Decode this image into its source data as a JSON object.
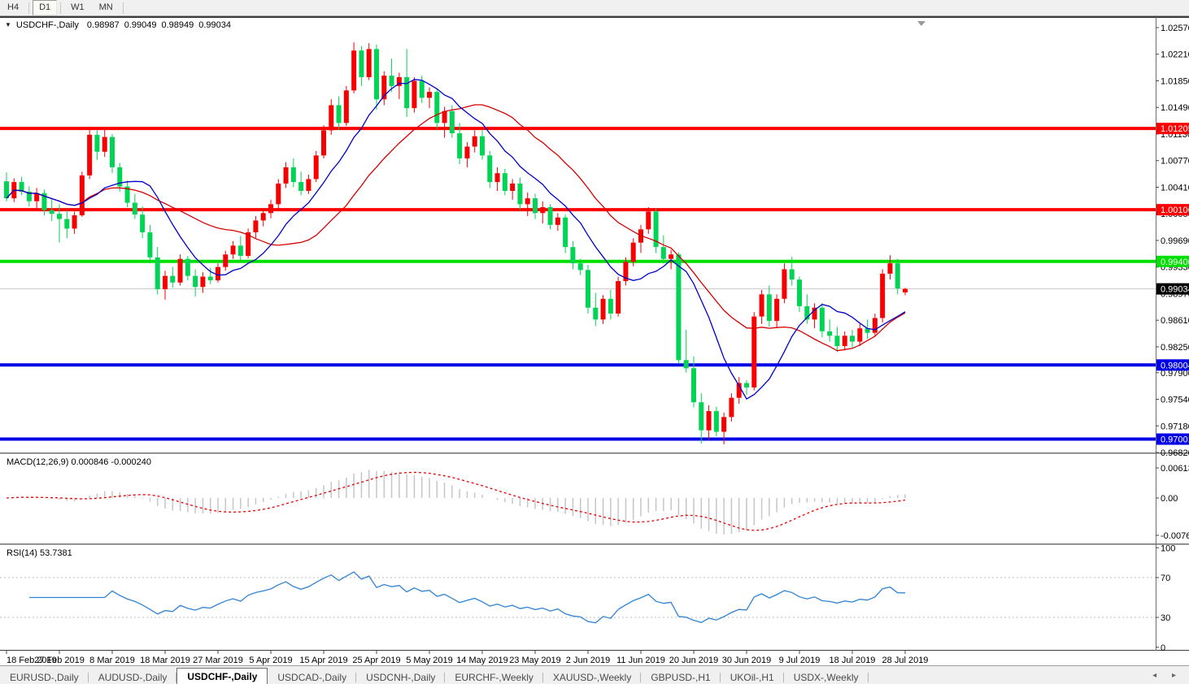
{
  "toolbar": {
    "buttons": [
      {
        "label": "H4",
        "active": false
      },
      {
        "label": "D1",
        "active": true
      },
      {
        "label": "W1",
        "active": false
      },
      {
        "label": "MN",
        "active": false
      }
    ]
  },
  "chart_window": {
    "dropdown_icon": "▼",
    "symbol_label": "USDCHF-,Daily",
    "open": "0.98987",
    "high": "0.99049",
    "low": "0.98949",
    "close": "0.99034",
    "shift_marker_icon": "chart-shift-triangle"
  },
  "indicator_labels": {
    "macd_name": "MACD(12,26,9)",
    "macd_values": "0.000846 -0.000240",
    "rsi_name": "RSI(14)",
    "rsi_value": "53.7381"
  },
  "colors": {
    "bull_candle": "#f60000",
    "bear_candle": "#00d455",
    "ma_fast": "#0000c8",
    "ma_slow": "#d40000",
    "level_red": "#ff0000",
    "level_green": "#00e000",
    "level_blue": "#0000e8",
    "current_line": "#c8c8c8",
    "current_badge": "#000000",
    "macd_hist": "#c6c6c6",
    "macd_signal": "#e60000",
    "rsi_line": "#2f83d4",
    "rsi_levels": "#bdbdbd",
    "axis_text": "#000000"
  },
  "y_axis_ticks": [
    "1.02570",
    "1.02210",
    "1.01850",
    "1.01490",
    "1.01130",
    "1.00770",
    "1.00410",
    "1.00050",
    "0.99690",
    "0.99330",
    "0.98970",
    "0.98610",
    "0.98250",
    "0.97900",
    "0.97540",
    "0.97180",
    "0.96820"
  ],
  "macd_axis_ticks": [
    {
      "label": "0.00613",
      "value": 0.00613
    },
    {
      "label": "0.00",
      "value": 0.0
    },
    {
      "label": "-0.007612",
      "value": -0.00761
    }
  ],
  "rsi_axis_ticks": [
    {
      "label": "100",
      "value": 100
    },
    {
      "label": "70",
      "value": 70
    },
    {
      "label": "30",
      "value": 30
    },
    {
      "label": "0",
      "value": 0
    }
  ],
  "chart_data": {
    "type": "candlestick",
    "symbol": "USDCHF",
    "timeframe": "Daily",
    "y_range": {
      "top": 1.0257,
      "bottom": 0.9682
    },
    "grid": "off",
    "levels": [
      {
        "label": "1.01205",
        "value": 1.01205,
        "color": "#ff0000"
      },
      {
        "label": "1.00106",
        "value": 1.00106,
        "color": "#ff0000"
      },
      {
        "label": "0.99406",
        "value": 0.99406,
        "color": "#00e000"
      },
      {
        "label": "0.98004",
        "value": 0.98004,
        "color": "#0000e8"
      },
      {
        "label": "0.97001",
        "value": 0.97001,
        "color": "#0000e8"
      }
    ],
    "current_price": {
      "label": "0.99034",
      "value": 0.99034
    },
    "x_ticks": [
      {
        "label": "18 Feb 2019",
        "index": 0
      },
      {
        "label": "27 Feb 2019",
        "index": 7
      },
      {
        "label": "8 Mar 2019",
        "index": 14
      },
      {
        "label": "18 Mar 2019",
        "index": 21
      },
      {
        "label": "27 Mar 2019",
        "index": 28
      },
      {
        "label": "5 Apr 2019",
        "index": 35
      },
      {
        "label": "15 Apr 2019",
        "index": 42
      },
      {
        "label": "25 Apr 2019",
        "index": 49
      },
      {
        "label": "5 May 2019",
        "index": 56
      },
      {
        "label": "14 May 2019",
        "index": 63
      },
      {
        "label": "23 May 2019",
        "index": 70
      },
      {
        "label": "2 Jun 2019",
        "index": 77
      },
      {
        "label": "11 Jun 2019",
        "index": 84
      },
      {
        "label": "20 Jun 2019",
        "index": 91
      },
      {
        "label": "30 Jun 2019",
        "index": 98
      },
      {
        "label": "9 Jul 2019",
        "index": 105
      },
      {
        "label": "18 Jul 2019",
        "index": 112
      },
      {
        "label": "28 Jul 2019",
        "index": 119
      }
    ],
    "indicators": {
      "ma_fast_period": 10,
      "ma_slow_period": 22,
      "macd": {
        "fast": 12,
        "slow": 26,
        "signal": 9,
        "main_value": 0.000846,
        "signal_value": -0.00024
      },
      "rsi": {
        "period": 14,
        "value": 53.7381,
        "overbought": 70,
        "oversold": 30
      }
    },
    "candles": [
      [
        1.0049,
        1.0061,
        1.0022,
        1.0026
      ],
      [
        1.0026,
        1.0053,
        1.0021,
        1.0048
      ],
      [
        1.0048,
        1.0055,
        1.003,
        1.0035
      ],
      [
        1.0035,
        1.0042,
        1.0015,
        1.0022
      ],
      [
        1.0022,
        1.004,
        1.0012,
        1.0033
      ],
      [
        1.0033,
        1.0038,
        1.0003,
        1.001
      ],
      [
        1.001,
        1.0025,
        0.9995,
        1.0005
      ],
      [
        1.0005,
        1.0018,
        0.9966,
        0.9998
      ],
      [
        0.9998,
        1.001,
        0.9972,
        0.9985
      ],
      [
        0.9985,
        1.0008,
        0.9978,
        1.0003
      ],
      [
        1.0003,
        1.0062,
        1.0001,
        1.0057
      ],
      [
        1.0057,
        1.0123,
        1.0052,
        1.0112
      ],
      [
        1.0112,
        1.0118,
        1.0078,
        1.0089
      ],
      [
        1.0089,
        1.0119,
        1.0082,
        1.0109
      ],
      [
        1.0109,
        1.0113,
        1.006,
        1.0068
      ],
      [
        1.0068,
        1.0074,
        1.0035,
        1.0042
      ],
      [
        1.0042,
        1.005,
        1.0014,
        1.002
      ],
      [
        1.002,
        1.0032,
        0.9998,
        1.0004
      ],
      [
        1.0004,
        1.0015,
        0.9972,
        0.998
      ],
      [
        0.998,
        0.999,
        0.9938,
        0.9946
      ],
      [
        0.9946,
        0.996,
        0.9896,
        0.9903
      ],
      [
        0.9903,
        0.9928,
        0.9889,
        0.9921
      ],
      [
        0.9921,
        0.9933,
        0.9905,
        0.9912
      ],
      [
        0.9912,
        0.995,
        0.9908,
        0.9944
      ],
      [
        0.9944,
        0.9948,
        0.9915,
        0.9921
      ],
      [
        0.9921,
        0.993,
        0.9893,
        0.9906
      ],
      [
        0.9906,
        0.9926,
        0.9898,
        0.992
      ],
      [
        0.992,
        0.9932,
        0.991,
        0.9915
      ],
      [
        0.9915,
        0.9938,
        0.9912,
        0.9933
      ],
      [
        0.9933,
        0.9955,
        0.9928,
        0.995
      ],
      [
        0.995,
        0.9968,
        0.9944,
        0.9962
      ],
      [
        0.9962,
        0.9975,
        0.994,
        0.9948
      ],
      [
        0.9948,
        0.9985,
        0.9945,
        0.998
      ],
      [
        0.998,
        1.0002,
        0.9972,
        0.9996
      ],
      [
        0.9996,
        1.0012,
        0.9988,
        1.0006
      ],
      [
        1.0006,
        1.0024,
        0.9999,
        1.0018
      ],
      [
        1.0018,
        1.0052,
        1.0012,
        1.0046
      ],
      [
        1.0046,
        1.0075,
        1.004,
        1.0068
      ],
      [
        1.0068,
        1.008,
        1.0041,
        1.0048
      ],
      [
        1.0048,
        1.0062,
        1.003,
        1.0036
      ],
      [
        1.0036,
        1.0058,
        1.0032,
        1.0052
      ],
      [
        1.0052,
        1.009,
        1.0048,
        1.0084
      ],
      [
        1.0084,
        1.0125,
        1.008,
        1.0118
      ],
      [
        1.0118,
        1.016,
        1.0112,
        1.0152
      ],
      [
        1.0152,
        1.0164,
        1.0118,
        1.0128
      ],
      [
        1.0128,
        1.0178,
        1.0124,
        1.0172
      ],
      [
        1.0172,
        1.0237,
        1.0168,
        1.0226
      ],
      [
        1.0226,
        1.0232,
        1.0178,
        1.019
      ],
      [
        1.019,
        1.0236,
        1.0186,
        1.0228
      ],
      [
        1.0228,
        1.0234,
        1.0146,
        1.016
      ],
      [
        1.016,
        1.0198,
        1.0152,
        1.0192
      ],
      [
        1.0192,
        1.0215,
        1.017,
        1.0178
      ],
      [
        1.0178,
        1.0196,
        1.016,
        1.019
      ],
      [
        1.019,
        1.0228,
        1.0136,
        1.0148
      ],
      [
        1.0148,
        1.019,
        1.0142,
        1.0185
      ],
      [
        1.0185,
        1.0192,
        1.0155,
        1.0162
      ],
      [
        1.0162,
        1.0176,
        1.0148,
        1.017
      ],
      [
        1.017,
        1.0174,
        1.012,
        1.0128
      ],
      [
        1.0128,
        1.015,
        1.0108,
        1.0144
      ],
      [
        1.0144,
        1.0152,
        1.0108,
        1.0114
      ],
      [
        1.0114,
        1.0128,
        1.0072,
        1.008
      ],
      [
        1.008,
        1.0102,
        1.0068,
        1.0096
      ],
      [
        1.0096,
        1.0118,
        1.0088,
        1.011
      ],
      [
        1.011,
        1.0118,
        1.0078,
        1.0084
      ],
      [
        1.0084,
        1.009,
        1.004,
        1.0048
      ],
      [
        1.0048,
        1.0068,
        1.0036,
        1.006
      ],
      [
        1.006,
        1.0066,
        1.003,
        1.0036
      ],
      [
        1.0036,
        1.0052,
        1.0024,
        1.0046
      ],
      [
        1.0046,
        1.0054,
        1.001,
        1.0018
      ],
      [
        1.0018,
        1.0034,
        1.0002,
        1.0026
      ],
      [
        1.0026,
        1.0032,
        0.9998,
        1.0006
      ],
      [
        1.0006,
        1.0022,
        0.9992,
        1.0014
      ],
      [
        1.0014,
        1.0018,
        0.9984,
        0.999
      ],
      [
        0.999,
        1.0006,
        0.9982,
        1.0
      ],
      [
        1.0,
        1.0004,
        0.9952,
        0.996
      ],
      [
        0.996,
        0.9968,
        0.993,
        0.9938
      ],
      [
        0.9938,
        0.9944,
        0.9922,
        0.9929
      ],
      [
        0.9929,
        0.9936,
        0.987,
        0.9878
      ],
      [
        0.9878,
        0.9898,
        0.9853,
        0.9862
      ],
      [
        0.9862,
        0.9895,
        0.9856,
        0.989
      ],
      [
        0.989,
        0.9902,
        0.9862,
        0.987
      ],
      [
        0.987,
        0.992,
        0.9866,
        0.9914
      ],
      [
        0.9914,
        0.9946,
        0.9908,
        0.994
      ],
      [
        0.994,
        0.9972,
        0.9934,
        0.9966
      ],
      [
        0.9966,
        0.999,
        0.9952,
        0.9984
      ],
      [
        0.9984,
        1.0014,
        0.9978,
        1.0008
      ],
      [
        1.0008,
        1.0012,
        0.9952,
        0.996
      ],
      [
        0.996,
        0.9976,
        0.9938,
        0.9944
      ],
      [
        0.9944,
        0.9956,
        0.993,
        0.995
      ],
      [
        0.995,
        0.9953,
        0.9802,
        0.9807
      ],
      [
        0.9807,
        0.9848,
        0.979,
        0.9796
      ],
      [
        0.9796,
        0.9812,
        0.9743,
        0.975
      ],
      [
        0.975,
        0.9762,
        0.9694,
        0.9712
      ],
      [
        0.9712,
        0.9746,
        0.9699,
        0.9738
      ],
      [
        0.9738,
        0.9744,
        0.9704,
        0.971
      ],
      [
        0.971,
        0.9736,
        0.9693,
        0.973
      ],
      [
        0.973,
        0.9762,
        0.9724,
        0.9756
      ],
      [
        0.9756,
        0.9784,
        0.9748,
        0.9776
      ],
      [
        0.9776,
        0.978,
        0.976,
        0.977
      ],
      [
        0.977,
        0.9872,
        0.9766,
        0.9866
      ],
      [
        0.9866,
        0.9902,
        0.9856,
        0.9896
      ],
      [
        0.9896,
        0.9908,
        0.9852,
        0.986
      ],
      [
        0.986,
        0.9896,
        0.985,
        0.989
      ],
      [
        0.989,
        0.9938,
        0.9884,
        0.993
      ],
      [
        0.993,
        0.9947,
        0.9908,
        0.9916
      ],
      [
        0.9916,
        0.992,
        0.9872,
        0.988
      ],
      [
        0.988,
        0.9896,
        0.9856,
        0.9862
      ],
      [
        0.9862,
        0.9884,
        0.985,
        0.9878
      ],
      [
        0.9878,
        0.9884,
        0.9838,
        0.9846
      ],
      [
        0.9846,
        0.9862,
        0.9832,
        0.984
      ],
      [
        0.984,
        0.9852,
        0.9818,
        0.9826
      ],
      [
        0.9826,
        0.9846,
        0.982,
        0.984
      ],
      [
        0.984,
        0.9848,
        0.9824,
        0.9832
      ],
      [
        0.9832,
        0.9856,
        0.9826,
        0.985
      ],
      [
        0.985,
        0.9862,
        0.9836,
        0.9844
      ],
      [
        0.9844,
        0.987,
        0.984,
        0.9864
      ],
      [
        0.9864,
        0.993,
        0.9858,
        0.9924
      ],
      [
        0.9924,
        0.9949,
        0.9916,
        0.9938
      ],
      [
        0.9938,
        0.9944,
        0.9896,
        0.9904
      ],
      [
        0.98987,
        0.99049,
        0.98949,
        0.99034
      ]
    ]
  },
  "tabbar": {
    "tabs": [
      {
        "label": "EURUSD-,Daily",
        "active": false
      },
      {
        "label": "AUDUSD-,Daily",
        "active": false
      },
      {
        "label": "USDCHF-,Daily",
        "active": true
      },
      {
        "label": "USDCAD-,Daily",
        "active": false
      },
      {
        "label": "USDCNH-,Daily",
        "active": false
      },
      {
        "label": "EURCHF-,Weekly",
        "active": false
      },
      {
        "label": "XAUUSD-,Weekly",
        "active": false
      },
      {
        "label": "GBPUSD-,H1",
        "active": false
      },
      {
        "label": "UKOil-,H1",
        "active": false
      },
      {
        "label": "USDX-,Weekly",
        "active": false
      }
    ],
    "scroll_left_icon": "◂",
    "scroll_right_icon": "▸"
  }
}
